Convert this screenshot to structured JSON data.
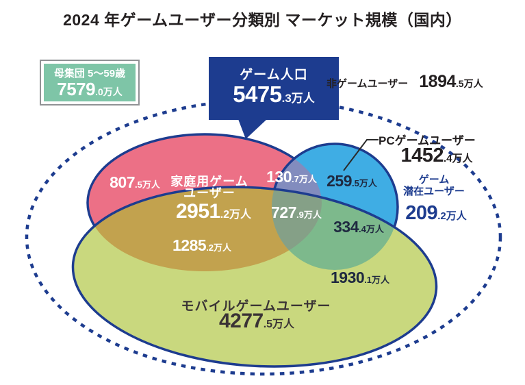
{
  "title": "2024 年ゲームユーザー分類別 マーケット規模（国内）",
  "unit": "万人",
  "population_box": {
    "label": "母集団 5～59歳",
    "value": "7579.0"
  },
  "game_population": {
    "label": "ゲーム人口",
    "value": "5475.3"
  },
  "non_game_users": {
    "label": "非ゲームユーザー",
    "value": "1894.5"
  },
  "pc_users": {
    "label": "PCゲームユーザー",
    "value": "1452.4"
  },
  "latent_users": {
    "label_line1": "ゲーム",
    "label_line2": "潜在ユーザー",
    "value": "209.2"
  },
  "console_users": {
    "label_line1": "家庭用ゲーム",
    "label_line2": "ユーザー",
    "value": "2951.2"
  },
  "mobile_users": {
    "label": "モバイルゲームユーザー",
    "value": "4277.5"
  },
  "segments": {
    "console_only": "807.5",
    "console_pc": "130.7",
    "pc_only": "259.5",
    "console_pc_mobile": "727.9",
    "pc_mobile": "334.4",
    "console_mobile": "1285.2",
    "mobile_only": "1930.1"
  },
  "colors": {
    "navy_outline": "#1d3c8f",
    "console_fill": "#ec7086",
    "pc_fill": "#3fade4",
    "mobile_fill": "#c9d87e",
    "console_pc_overlap": "#828cbe",
    "console_mobile_overlap": "#c2a24e",
    "pc_mobile_overlap": "#7db98c",
    "triple_overlap": "#85a087",
    "population_box_fill": "#7ec5a7",
    "dark_number_text": "#1f2940",
    "title_text": "#242021"
  },
  "chart_data": {
    "type": "venn",
    "title": "2024 年ゲームユーザー分類別 マーケット規模（国内）",
    "unit": "万人",
    "population": {
      "label": "母集団 5～59歳",
      "value": 7579.0
    },
    "game_population": {
      "label": "ゲーム人口",
      "value": 5475.3
    },
    "non_game_users": {
      "label": "非ゲームユーザー",
      "value": 1894.5
    },
    "latent_users": {
      "label": "ゲーム潜在ユーザー",
      "value": 209.2
    },
    "sets": [
      {
        "name": "家庭用ゲームユーザー",
        "value": 2951.2
      },
      {
        "name": "PCゲームユーザー",
        "value": 1452.4
      },
      {
        "name": "モバイルゲームユーザー",
        "value": 4277.5
      }
    ],
    "regions": [
      {
        "sets": [
          "家庭用ゲームユーザー"
        ],
        "value": 807.5
      },
      {
        "sets": [
          "家庭用ゲームユーザー",
          "PCゲームユーザー"
        ],
        "value": 130.7
      },
      {
        "sets": [
          "PCゲームユーザー"
        ],
        "value": 259.5
      },
      {
        "sets": [
          "家庭用ゲームユーザー",
          "PCゲームユーザー",
          "モバイルゲームユーザー"
        ],
        "value": 727.9
      },
      {
        "sets": [
          "PCゲームユーザー",
          "モバイルゲームユーザー"
        ],
        "value": 334.4
      },
      {
        "sets": [
          "家庭用ゲームユーザー",
          "モバイルゲームユーザー"
        ],
        "value": 1285.2
      },
      {
        "sets": [
          "モバイルゲームユーザー"
        ],
        "value": 1930.1
      }
    ]
  }
}
